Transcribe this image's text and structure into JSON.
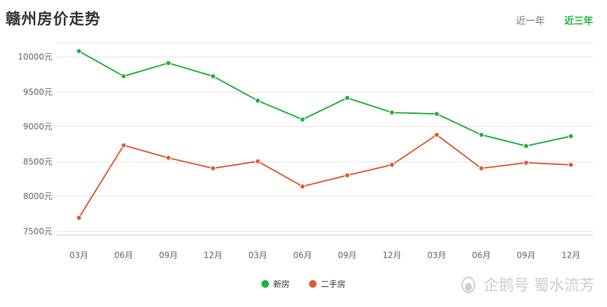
{
  "title": "赣州房价走势",
  "tabs": [
    {
      "label": "近一年",
      "active": false
    },
    {
      "label": "近三年",
      "active": true
    }
  ],
  "watermark": "企鹅号 蜀水流芳",
  "chart_data": {
    "type": "line",
    "categories": [
      "03月",
      "06月",
      "09月",
      "12月",
      "03月",
      "06月",
      "09月",
      "12月",
      "03月",
      "06月",
      "09月",
      "12月"
    ],
    "series": [
      {
        "name": "新房",
        "color": "#1fb33a",
        "values": [
          10080,
          9720,
          9910,
          9720,
          9370,
          9100,
          9410,
          9200,
          9180,
          8880,
          8720,
          8860
        ]
      },
      {
        "name": "二手房",
        "color": "#e05a35",
        "values": [
          7690,
          8730,
          8550,
          8400,
          8500,
          8140,
          8300,
          8450,
          8880,
          8400,
          8480,
          8450
        ]
      }
    ],
    "yticks": [
      "7500元",
      "8000元",
      "8500元",
      "9000元",
      "9500元",
      "10000元"
    ],
    "ytick_values": [
      7500,
      8000,
      8500,
      9000,
      9500,
      10000
    ],
    "ylim": [
      7500,
      10000
    ],
    "grid": true,
    "legend_position": "bottom-center",
    "xlabel": "",
    "ylabel": ""
  }
}
